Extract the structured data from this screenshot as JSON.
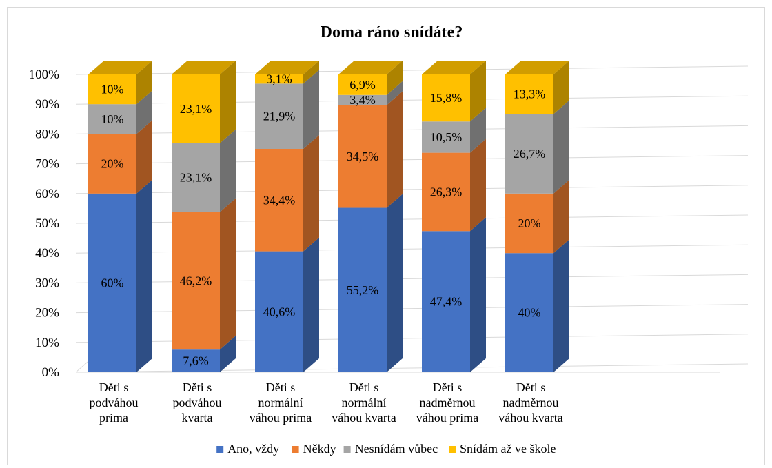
{
  "chart_data": {
    "type": "bar",
    "stacked": true,
    "percent": true,
    "three_d": true,
    "title": "Doma ráno snídáte?",
    "xlabel": "",
    "ylabel": "",
    "ylim": [
      0,
      100
    ],
    "y_ticks": [
      "0%",
      "10%",
      "20%",
      "30%",
      "40%",
      "50%",
      "60%",
      "70%",
      "80%",
      "90%",
      "100%"
    ],
    "grid": true,
    "legend_position": "bottom",
    "categories": [
      [
        "Děti s",
        "podváhou",
        "prima"
      ],
      [
        "Děti s",
        "podváhou",
        "kvarta"
      ],
      [
        "Děti s",
        "normální",
        "váhou prima"
      ],
      [
        "Děti s",
        "normální",
        "váhou kvarta"
      ],
      [
        "Děti s",
        "nadměrnou",
        "váhou prima"
      ],
      [
        "Děti s",
        "nadměrnou",
        "váhou kvarta"
      ]
    ],
    "series": [
      {
        "name": "Ano, vždy",
        "color": "#4472C4",
        "values": [
          60,
          7.6,
          40.6,
          55.2,
          47.4,
          40
        ],
        "labels": [
          "60%",
          "7,6%",
          "40,6%",
          "55,2%",
          "47,4%",
          "40%"
        ]
      },
      {
        "name": "Někdy",
        "color": "#ED7D31",
        "values": [
          20,
          46.2,
          34.4,
          34.5,
          26.3,
          20
        ],
        "labels": [
          "20%",
          "46,2%",
          "34,4%",
          "34,5%",
          "26,3%",
          "20%"
        ]
      },
      {
        "name": "Nesnídám vůbec",
        "color": "#A5A5A5",
        "values": [
          10,
          23.1,
          21.9,
          3.4,
          10.5,
          26.7
        ],
        "labels": [
          "10%",
          "23,1%",
          "21,9%",
          "3,4%",
          "10,5%",
          "26,7%"
        ]
      },
      {
        "name": "Snídám až ve škole",
        "color": "#FFC000",
        "values": [
          10,
          23.1,
          3.1,
          6.9,
          15.8,
          13.3
        ],
        "labels": [
          "10%",
          "23,1%",
          "3,1%",
          "6,9%",
          "15,8%",
          "13,3%"
        ]
      }
    ]
  }
}
